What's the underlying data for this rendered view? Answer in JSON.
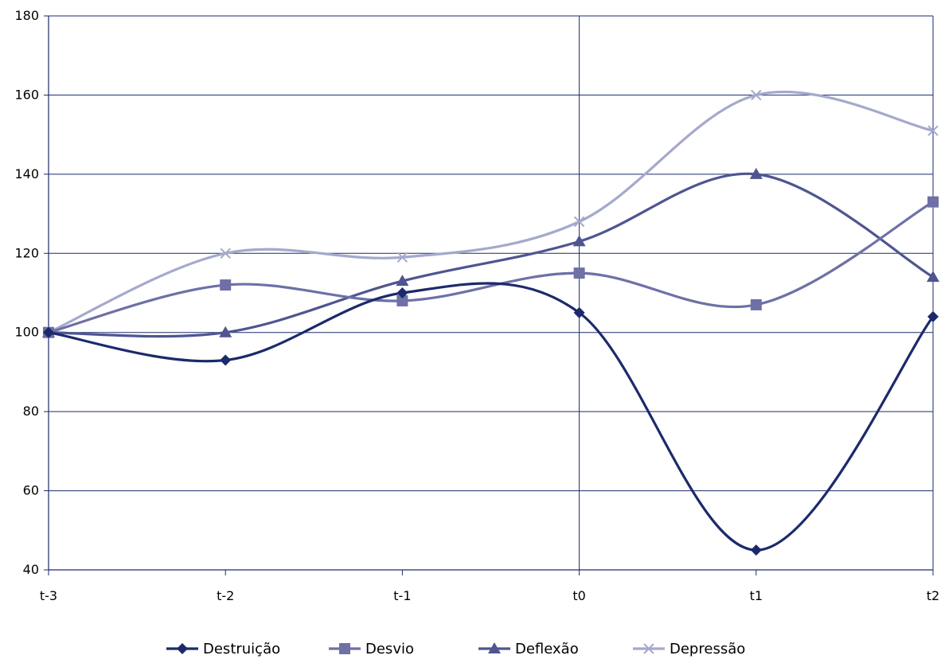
{
  "chart_data": {
    "type": "line",
    "categories": [
      "t-3",
      "t-2",
      "t-1",
      "t0",
      "t1",
      "t2"
    ],
    "ylim": [
      40,
      180
    ],
    "yticks": [
      40,
      60,
      80,
      100,
      120,
      140,
      160,
      180
    ],
    "grid": true,
    "legend_position": "bottom",
    "series": [
      {
        "name": "Destruição",
        "values": [
          100,
          93,
          110,
          105,
          45,
          104
        ],
        "color": "#1c2a6b",
        "marker": "diamond"
      },
      {
        "name": "Desvio",
        "values": [
          100,
          112,
          108,
          115,
          107,
          133
        ],
        "color": "#6e70a6",
        "marker": "square"
      },
      {
        "name": "Deflexão",
        "values": [
          100,
          100,
          113,
          123,
          140,
          114
        ],
        "color": "#4e5590",
        "marker": "triangle"
      },
      {
        "name": "Depressão",
        "values": [
          100,
          120,
          119,
          128,
          160,
          151
        ],
        "color": "#a4a9cc",
        "marker": "x"
      }
    ]
  }
}
